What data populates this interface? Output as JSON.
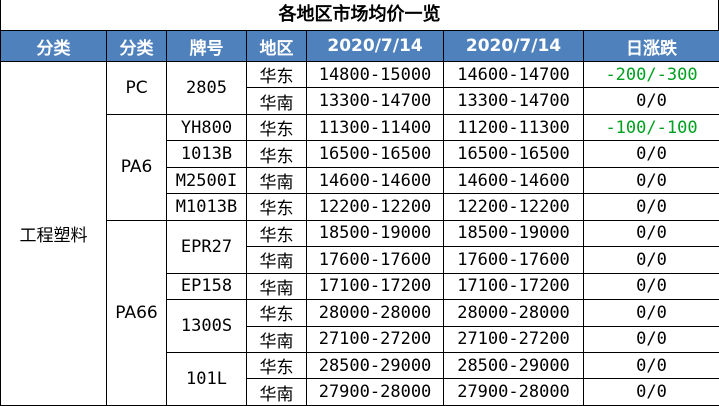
{
  "title": "各地区市场均价一览",
  "header": {
    "category": "分类",
    "subcategory": "分类",
    "grade": "牌号",
    "region": "地区",
    "date1": "2020/7/14",
    "date2": "2020/7/14",
    "change": "日涨跌"
  },
  "main_category": "工程塑料",
  "groups": [
    {
      "subcategory": "PC",
      "grades": [
        {
          "grade": "2805",
          "rows": [
            {
              "region": "华东",
              "price1": "14800-15000",
              "price2": "14600-14700",
              "change": "-200/-300",
              "change_color": "#00a020"
            },
            {
              "region": "华南",
              "price1": "13300-14700",
              "price2": "13300-14700",
              "change": "0/0"
            }
          ]
        }
      ]
    },
    {
      "subcategory": "PA6",
      "grades": [
        {
          "grade": "YH800",
          "rows": [
            {
              "region": "华东",
              "price1": "11300-11400",
              "price2": "11200-11300",
              "change": "-100/-100",
              "change_color": "#00a020"
            }
          ]
        },
        {
          "grade": "1013B",
          "rows": [
            {
              "region": "华东",
              "price1": "16500-16500",
              "price2": "16500-16500",
              "change": "0/0"
            }
          ]
        },
        {
          "grade": "M2500I",
          "rows": [
            {
              "region": "华南",
              "price1": "14600-14600",
              "price2": "14600-14600",
              "change": "0/0"
            }
          ]
        },
        {
          "grade": "M1013B",
          "rows": [
            {
              "region": "华东",
              "price1": "12200-12200",
              "price2": "12200-12200",
              "change": "0/0"
            }
          ]
        }
      ]
    },
    {
      "subcategory": "PA66",
      "grades": [
        {
          "grade": "EPR27",
          "rows": [
            {
              "region": "华东",
              "price1": "18500-19000",
              "price2": "18500-19000",
              "change": "0/0"
            },
            {
              "region": "华南",
              "price1": "17600-17600",
              "price2": "17600-17600",
              "change": "0/0"
            }
          ]
        },
        {
          "grade": "EP158",
          "rows": [
            {
              "region": "华南",
              "price1": "17100-17200",
              "price2": "17100-17200",
              "change": "0/0"
            }
          ]
        },
        {
          "grade": "1300S",
          "rows": [
            {
              "region": "华东",
              "price1": "28000-28000",
              "price2": "28000-28000",
              "change": "0/0"
            },
            {
              "region": "华南",
              "price1": "27100-27200",
              "price2": "27100-27200",
              "change": "0/0"
            }
          ]
        },
        {
          "grade": "101L",
          "rows": [
            {
              "region": "华东",
              "price1": "28500-29000",
              "price2": "28500-29000",
              "change": "0/0"
            },
            {
              "region": "华南",
              "price1": "27900-28000",
              "price2": "27900-28000",
              "change": "0/0"
            }
          ]
        }
      ]
    }
  ]
}
